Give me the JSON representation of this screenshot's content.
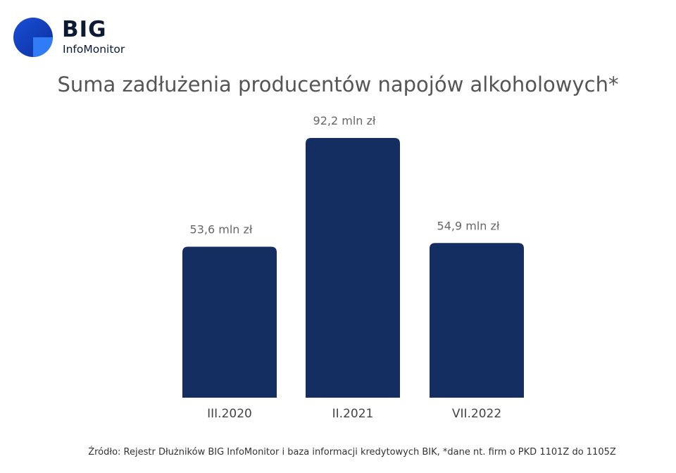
{
  "logo": {
    "name": "BIG",
    "subname": "InfoMonitor"
  },
  "chart_data": {
    "type": "bar",
    "title": "Suma zadłużenia producentów napojów alkoholowych*",
    "categories": [
      "III.2020",
      "II.2021",
      "VII.2022"
    ],
    "values": [
      53.6,
      92.2,
      54.9
    ],
    "data_labels": [
      "53,6 mln zł",
      "92,2 mln zł",
      "54,9 mln zł"
    ],
    "unit": "mln zł",
    "xlabel": "",
    "ylabel": "",
    "ylim": [
      0,
      92.2
    ],
    "grid": false,
    "legend": "none",
    "bar_color": "#142e62"
  },
  "source": "Źródło: Rejestr Dłużników BIG InfoMonitor i baza informacji kredytowych BIK, *dane nt. firm o PKD 1101Z do 1105Z"
}
